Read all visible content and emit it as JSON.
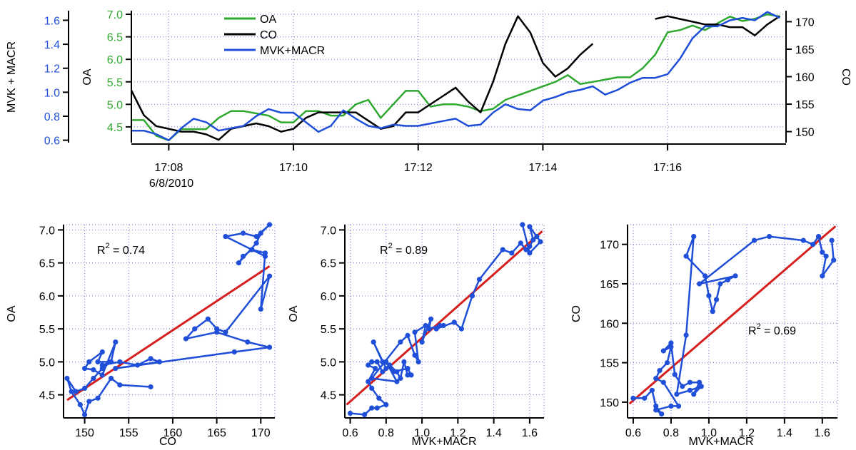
{
  "colors": {
    "oa": "#2fa82f",
    "co": "#000000",
    "mvk": "#1f4fd8",
    "fit": "#d62020",
    "grid": "#7070d0",
    "axis": "#000000"
  },
  "chart_data": [
    {
      "type": "line",
      "title": "",
      "xlabel": "",
      "x_ticks": [
        "17:08",
        "17:10",
        "17:12",
        "17:14",
        "17:16"
      ],
      "x_tick_minutes": [
        8,
        10,
        12,
        14,
        16
      ],
      "x_sublabel": "6/8/2010",
      "xlim": [
        7.4,
        17.9
      ],
      "legend": {
        "placement": "top-left",
        "entries": [
          "OA",
          "CO",
          "MVK+MACR"
        ]
      },
      "axes": {
        "left_outer": {
          "label": "MVK + MACR",
          "ticks": [
            "0.6",
            "0.8",
            "1.0",
            "1.2",
            "1.4",
            "1.6"
          ],
          "lim": [
            0.58,
            1.68
          ],
          "color": "mvk"
        },
        "left_inner": {
          "label": "OA",
          "ticks": [
            "4.5",
            "5.0",
            "5.5",
            "6.0",
            "6.5",
            "7.0"
          ],
          "lim": [
            4.15,
            7.08
          ],
          "color": "oa"
        },
        "right": {
          "label": "CO",
          "ticks": [
            "150",
            "155",
            "160",
            "165",
            "170"
          ],
          "lim": [
            148,
            172
          ],
          "color": "co"
        }
      },
      "x_minutes": [
        7.4,
        7.6,
        7.8,
        8.0,
        8.2,
        8.4,
        8.6,
        8.8,
        9.0,
        9.2,
        9.4,
        9.6,
        9.8,
        10.0,
        10.2,
        10.4,
        10.6,
        10.8,
        11.0,
        11.2,
        11.4,
        11.6,
        11.8,
        12.0,
        12.2,
        12.4,
        12.6,
        12.8,
        13.0,
        13.2,
        13.4,
        13.6,
        13.8,
        14.0,
        14.2,
        14.4,
        14.6,
        14.8,
        15.0,
        15.2,
        15.4,
        15.6,
        15.8,
        16.0,
        16.2,
        16.4,
        16.6,
        16.8,
        17.0,
        17.2,
        17.4,
        17.6,
        17.8
      ],
      "series": [
        {
          "name": "OA",
          "axis": "left_inner",
          "values": [
            4.65,
            4.65,
            4.3,
            4.2,
            4.45,
            4.45,
            4.45,
            4.7,
            4.85,
            4.85,
            4.8,
            4.75,
            4.6,
            4.6,
            4.85,
            4.85,
            4.75,
            4.75,
            5.0,
            5.1,
            4.7,
            5.0,
            5.3,
            5.3,
            4.95,
            5.0,
            5.0,
            4.95,
            4.85,
            4.9,
            5.1,
            5.2,
            5.3,
            5.4,
            5.5,
            5.65,
            5.45,
            5.5,
            5.55,
            5.6,
            5.6,
            5.8,
            6.1,
            6.6,
            6.65,
            6.75,
            6.65,
            6.8,
            6.95,
            6.85,
            6.9,
            7.0,
            6.95
          ]
        },
        {
          "name": "CO",
          "axis": "right",
          "values": [
            157.5,
            153,
            151,
            150.5,
            150,
            150,
            149.5,
            148.5,
            150.5,
            151,
            151.5,
            151,
            150,
            150.5,
            152.5,
            153.5,
            153.5,
            153.5,
            153.5,
            152,
            150.5,
            151,
            153.5,
            153.5,
            155,
            156.5,
            158,
            155.5,
            153.5,
            159,
            166,
            171,
            168,
            162.5,
            160,
            161.5,
            164,
            166,
            null,
            null,
            null,
            null,
            170.5,
            171,
            170.5,
            170,
            169.5,
            169.5,
            169,
            169,
            167.5,
            169.5,
            171
          ]
        },
        {
          "name": "MVK+MACR",
          "axis": "left_outer",
          "values": [
            0.68,
            0.68,
            0.65,
            0.6,
            0.7,
            0.78,
            0.75,
            0.68,
            0.7,
            0.72,
            0.8,
            0.86,
            0.83,
            0.83,
            0.75,
            0.67,
            0.72,
            0.85,
            0.78,
            0.72,
            0.7,
            0.73,
            0.72,
            0.72,
            0.74,
            0.76,
            0.78,
            0.72,
            0.73,
            0.83,
            0.9,
            0.86,
            0.85,
            0.93,
            0.96,
            1.0,
            1.02,
            1.05,
            0.98,
            1.02,
            1.08,
            1.12,
            1.12,
            1.15,
            1.28,
            1.45,
            1.55,
            1.55,
            1.6,
            1.62,
            1.6,
            1.67,
            1.62
          ]
        }
      ]
    },
    {
      "type": "scatter",
      "title": "",
      "xlabel": "CO",
      "ylabel": "OA",
      "x_ticks": [
        "150",
        "155",
        "160",
        "165",
        "170"
      ],
      "y_ticks": [
        "4.5",
        "5.0",
        "5.5",
        "6.0",
        "6.5",
        "7.0"
      ],
      "xlim": [
        147.6,
        171.6
      ],
      "ylim": [
        4.15,
        7.08
      ],
      "annotation": {
        "prefix": "R",
        "superscript": "2",
        "rest": " = 0.74"
      },
      "points": [
        [
          157.5,
          4.62
        ],
        [
          154,
          4.65
        ],
        [
          153,
          4.75
        ],
        [
          151.5,
          4.45
        ],
        [
          150.5,
          4.4
        ],
        [
          150,
          4.2
        ],
        [
          149.5,
          4.35
        ],
        [
          148.5,
          4.55
        ],
        [
          148,
          4.75
        ],
        [
          149,
          4.55
        ],
        [
          150,
          4.6
        ],
        [
          151,
          4.75
        ],
        [
          152,
          4.9
        ],
        [
          153,
          5.0
        ],
        [
          151.5,
          5.0
        ],
        [
          152,
          5.15
        ],
        [
          150.5,
          5.0
        ],
        [
          150,
          4.9
        ],
        [
          151,
          4.88
        ],
        [
          152,
          4.8
        ],
        [
          153.5,
          5.3
        ],
        [
          153,
          5.0
        ],
        [
          152,
          4.95
        ],
        [
          154,
          5.0
        ],
        [
          156,
          4.95
        ],
        [
          157.5,
          5.05
        ],
        [
          158.5,
          5.0
        ],
        [
          153.5,
          4.9
        ],
        [
          167,
          5.15
        ],
        [
          171,
          5.22
        ],
        [
          168.5,
          5.3
        ],
        [
          165,
          5.45
        ],
        [
          161.5,
          5.35
        ],
        [
          162.5,
          5.5
        ],
        [
          164,
          5.65
        ],
        [
          165,
          5.5
        ],
        [
          166,
          5.45
        ],
        [
          171,
          6.3
        ],
        [
          170,
          5.8
        ],
        [
          170.5,
          6.65
        ],
        [
          169,
          6.7
        ],
        [
          168,
          6.6
        ],
        [
          167.5,
          6.5
        ],
        [
          169.5,
          6.8
        ],
        [
          170,
          6.95
        ],
        [
          171,
          7.08
        ],
        [
          169.5,
          6.9
        ],
        [
          168,
          6.95
        ],
        [
          166,
          6.9
        ],
        [
          170.5,
          6.6
        ]
      ],
      "fit": {
        "x": [
          148,
          171
        ],
        "y": [
          4.42,
          6.45
        ]
      }
    },
    {
      "type": "scatter",
      "title": "",
      "xlabel": "MVK+MACR",
      "ylabel": "OA",
      "x_ticks": [
        "0.6",
        "0.8",
        "1.0",
        "1.2",
        "1.4",
        "1.6"
      ],
      "y_ticks": [
        "4.5",
        "5.0",
        "5.5",
        "6.0",
        "6.5",
        "7.0"
      ],
      "xlim": [
        0.57,
        1.68
      ],
      "ylim": [
        4.15,
        7.08
      ],
      "annotation": {
        "prefix": "R",
        "superscript": "2",
        "rest": " = 0.89"
      },
      "points": [
        [
          0.6,
          4.22
        ],
        [
          0.68,
          4.2
        ],
        [
          0.72,
          4.3
        ],
        [
          0.75,
          4.3
        ],
        [
          0.8,
          4.35
        ],
        [
          0.76,
          4.45
        ],
        [
          0.72,
          4.6
        ],
        [
          0.7,
          4.7
        ],
        [
          0.74,
          4.9
        ],
        [
          0.7,
          4.95
        ],
        [
          0.72,
          5.0
        ],
        [
          0.75,
          5.0
        ],
        [
          0.78,
          4.85
        ],
        [
          0.8,
          4.9
        ],
        [
          0.73,
          5.3
        ],
        [
          0.78,
          5.0
        ],
        [
          0.82,
          4.95
        ],
        [
          0.86,
          4.85
        ],
        [
          0.88,
          4.75
        ],
        [
          0.9,
          5.0
        ],
        [
          0.92,
          4.8
        ],
        [
          0.94,
          4.8
        ],
        [
          0.92,
          4.9
        ],
        [
          0.84,
          4.85
        ],
        [
          0.8,
          5.0
        ],
        [
          0.86,
          4.7
        ],
        [
          0.72,
          4.75
        ],
        [
          0.88,
          5.3
        ],
        [
          0.92,
          5.4
        ],
        [
          0.96,
          5.1
        ],
        [
          0.98,
          5.0
        ],
        [
          0.96,
          5.45
        ],
        [
          1.02,
          5.55
        ],
        [
          1.0,
          5.3
        ],
        [
          1.05,
          5.65
        ],
        [
          1.04,
          5.5
        ],
        [
          1.1,
          5.55
        ],
        [
          1.12,
          5.55
        ],
        [
          1.08,
          5.5
        ],
        [
          1.18,
          5.6
        ],
        [
          1.22,
          5.5
        ],
        [
          1.28,
          6.0
        ],
        [
          1.32,
          6.25
        ],
        [
          1.45,
          6.7
        ],
        [
          1.5,
          6.65
        ],
        [
          1.55,
          6.8
        ],
        [
          1.58,
          6.7
        ],
        [
          1.6,
          6.75
        ],
        [
          1.62,
          6.85
        ],
        [
          1.6,
          7.05
        ],
        [
          1.64,
          6.9
        ],
        [
          1.66,
          6.82
        ],
        [
          1.6,
          6.65
        ],
        [
          1.56,
          7.08
        ]
      ],
      "fit": {
        "x": [
          0.58,
          1.67
        ],
        "y": [
          4.35,
          6.98
        ]
      }
    },
    {
      "type": "scatter",
      "title": "",
      "xlabel": "MVK+MACR",
      "ylabel": "CO",
      "x_ticks": [
        "0.6",
        "0.8",
        "1.0",
        "1.2",
        "1.4",
        "1.6"
      ],
      "y_ticks": [
        "150",
        "155",
        "160",
        "165",
        "170"
      ],
      "xlim": [
        0.57,
        1.68
      ],
      "ylim": [
        148,
        172.5
      ],
      "annotation": {
        "prefix": "R",
        "superscript": "2",
        "rest": " = 0.69"
      },
      "points": [
        [
          0.6,
          150.5
        ],
        [
          0.66,
          150.5
        ],
        [
          0.7,
          151.5
        ],
        [
          0.72,
          149.5
        ],
        [
          0.75,
          148.5
        ],
        [
          0.72,
          149
        ],
        [
          0.8,
          149.5
        ],
        [
          0.84,
          149.5
        ],
        [
          0.76,
          152.5
        ],
        [
          0.72,
          153
        ],
        [
          0.74,
          154
        ],
        [
          0.78,
          155
        ],
        [
          0.8,
          157
        ],
        [
          0.76,
          156.5
        ],
        [
          0.8,
          157.5
        ],
        [
          0.82,
          153.5
        ],
        [
          0.86,
          152
        ],
        [
          0.9,
          152.5
        ],
        [
          0.95,
          152.5
        ],
        [
          0.92,
          151
        ],
        [
          0.96,
          152
        ],
        [
          0.9,
          151.5
        ],
        [
          0.83,
          151
        ],
        [
          0.88,
          158.5
        ],
        [
          0.92,
          171
        ],
        [
          0.88,
          168.5
        ],
        [
          0.98,
          166
        ],
        [
          1.0,
          163.5
        ],
        [
          1.02,
          161.5
        ],
        [
          1.04,
          163
        ],
        [
          1.06,
          165
        ],
        [
          1.1,
          165.5
        ],
        [
          1.14,
          166
        ],
        [
          0.95,
          165
        ],
        [
          1.24,
          170.5
        ],
        [
          1.32,
          171
        ],
        [
          1.5,
          170.5
        ],
        [
          1.55,
          170
        ],
        [
          1.58,
          171
        ],
        [
          1.6,
          169
        ],
        [
          1.62,
          168.5
        ],
        [
          1.6,
          166
        ],
        [
          1.66,
          168
        ],
        [
          1.65,
          170.5
        ]
      ],
      "fit": {
        "x": [
          0.58,
          1.67
        ],
        "y": [
          149.8,
          172.3
        ]
      }
    }
  ]
}
